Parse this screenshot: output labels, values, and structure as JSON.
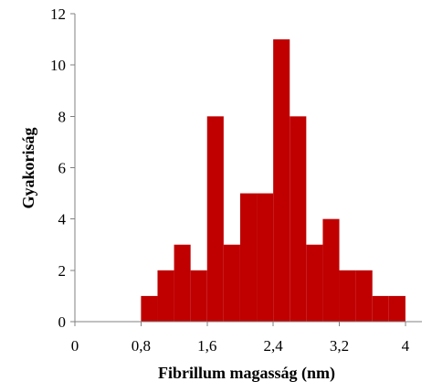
{
  "chart_data": {
    "type": "bar",
    "subtype": "histogram",
    "title": "",
    "xlabel": "Fibrillum magasság (nm)",
    "ylabel": "Gyakoriság",
    "xlim": [
      0,
      4.2
    ],
    "ylim": [
      0,
      12
    ],
    "x_ticks": [
      0,
      0.8,
      1.6,
      2.4,
      3.2,
      4
    ],
    "x_tick_labels": [
      "0",
      "0,8",
      "1,6",
      "2,4",
      "3,2",
      "4"
    ],
    "y_ticks": [
      0,
      2,
      4,
      6,
      8,
      10,
      12
    ],
    "y_tick_labels": [
      "0",
      "2",
      "4",
      "6",
      "8",
      "10",
      "12"
    ],
    "bin_width": 0.2,
    "bins": [
      {
        "start": 0.8,
        "end": 1.0,
        "count": 1
      },
      {
        "start": 1.0,
        "end": 1.2,
        "count": 2
      },
      {
        "start": 1.2,
        "end": 1.4,
        "count": 3
      },
      {
        "start": 1.4,
        "end": 1.6,
        "count": 2
      },
      {
        "start": 1.6,
        "end": 1.8,
        "count": 8
      },
      {
        "start": 1.8,
        "end": 2.0,
        "count": 3
      },
      {
        "start": 2.0,
        "end": 2.2,
        "count": 5
      },
      {
        "start": 2.2,
        "end": 2.4,
        "count": 5
      },
      {
        "start": 2.4,
        "end": 2.6,
        "count": 11
      },
      {
        "start": 2.6,
        "end": 2.8,
        "count": 8
      },
      {
        "start": 2.8,
        "end": 3.0,
        "count": 3
      },
      {
        "start": 3.0,
        "end": 3.2,
        "count": 4
      },
      {
        "start": 3.2,
        "end": 3.4,
        "count": 2
      },
      {
        "start": 3.4,
        "end": 3.6,
        "count": 2
      },
      {
        "start": 3.6,
        "end": 3.8,
        "count": 1
      },
      {
        "start": 3.8,
        "end": 4.0,
        "count": 1
      }
    ],
    "bar_color": "#C00000",
    "axis_color": "#808080",
    "grid": false,
    "legend": "none"
  }
}
